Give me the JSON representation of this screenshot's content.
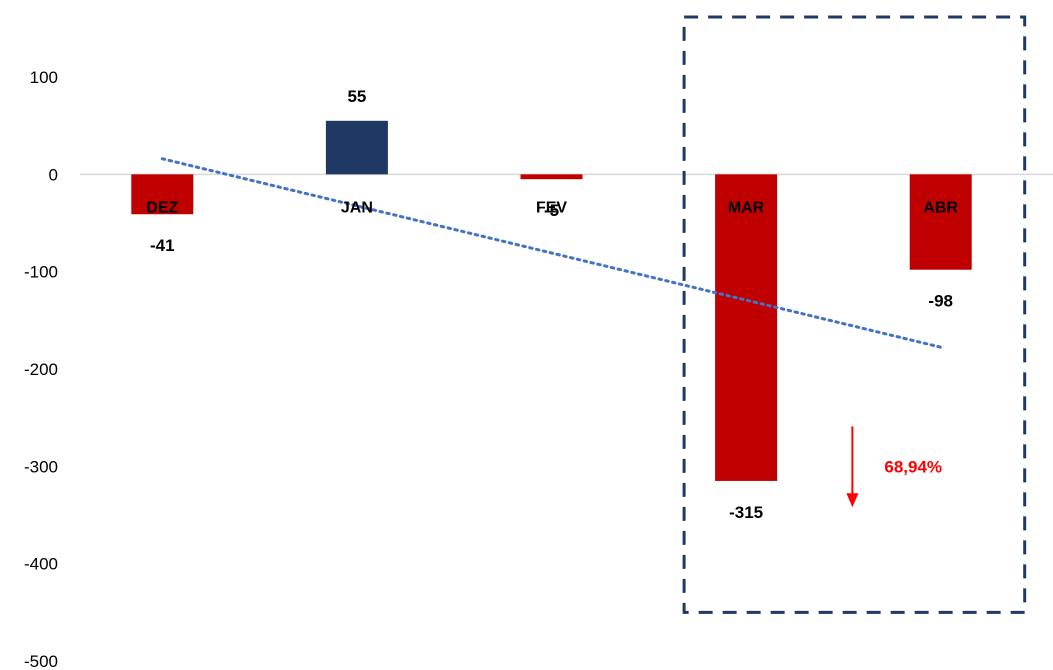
{
  "chart_data": {
    "type": "bar",
    "title": "",
    "xlabel": "",
    "ylabel": "",
    "categories": [
      "DEZ",
      "JAN",
      "FEV",
      "MAR",
      "ABR"
    ],
    "values": [
      -41,
      55,
      -5,
      -315,
      -98
    ],
    "value_labels": [
      "-41",
      "55",
      "-5",
      "-315",
      "-98"
    ],
    "ylim": [
      -500,
      100
    ],
    "yticks": [
      100,
      0,
      -100,
      -200,
      -300,
      -400,
      -500
    ],
    "ytick_labels": [
      "100",
      "0",
      "-100",
      "-200",
      "-300",
      "-400",
      "-500"
    ],
    "grid": false,
    "legend": "none",
    "colors": {
      "positive": "#1f3864",
      "negative": "#c00000"
    },
    "trendline": {
      "type": "linear",
      "style": "dotted",
      "color": "#4472c4"
    },
    "highlight": {
      "categories": [
        "MAR",
        "ABR"
      ],
      "style": "dashed-box",
      "color": "#1f3864"
    },
    "annotation": {
      "text": "68,94%",
      "color": "#ff0000",
      "icon": "arrow-down-icon"
    }
  }
}
